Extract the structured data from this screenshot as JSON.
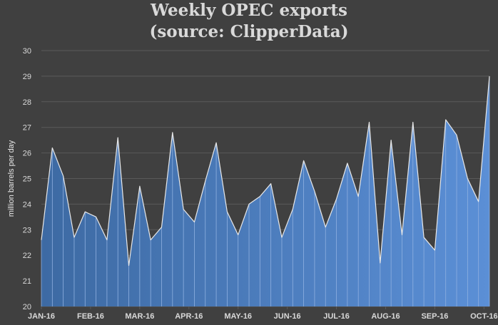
{
  "chart_data": {
    "type": "area",
    "title_line1": "Weekly OPEC exports",
    "title_line2": "(source: ClipperData)",
    "ylabel": "million barrels per day",
    "xlabel": "",
    "ylim": [
      20,
      30
    ],
    "yticks": [
      20,
      21,
      22,
      23,
      24,
      25,
      26,
      27,
      28,
      29,
      30
    ],
    "grid": "horizontal",
    "month_labels": [
      "JAN-16",
      "FEB-16",
      "MAR-16",
      "APR-16",
      "MAY-16",
      "JUN-16",
      "JUL-16",
      "AUG-16",
      "SEP-16",
      "OCT-16"
    ],
    "weeks_per_month_label_step": 4.5,
    "values": [
      22.6,
      26.2,
      25.1,
      22.7,
      23.7,
      23.5,
      22.6,
      26.6,
      21.6,
      24.7,
      22.6,
      23.1,
      26.8,
      23.8,
      23.3,
      24.9,
      26.4,
      23.7,
      22.8,
      24.0,
      24.3,
      24.8,
      22.7,
      23.8,
      25.7,
      24.5,
      23.1,
      24.2,
      25.6,
      24.3,
      27.2,
      21.7,
      26.5,
      22.8,
      27.2,
      22.7,
      22.2,
      27.3,
      26.7,
      25.0,
      24.1,
      29.0
    ],
    "colors": {
      "background": "#404040",
      "fill_top": "#5b8bd0",
      "fill_bottom": "#3f6699",
      "fill_left": "#3d6aa3",
      "fill_right": "#5b8fd6",
      "outline": "#e8e8e8",
      "grid": "#5a5a5a",
      "text": "#d9d9d9"
    }
  }
}
